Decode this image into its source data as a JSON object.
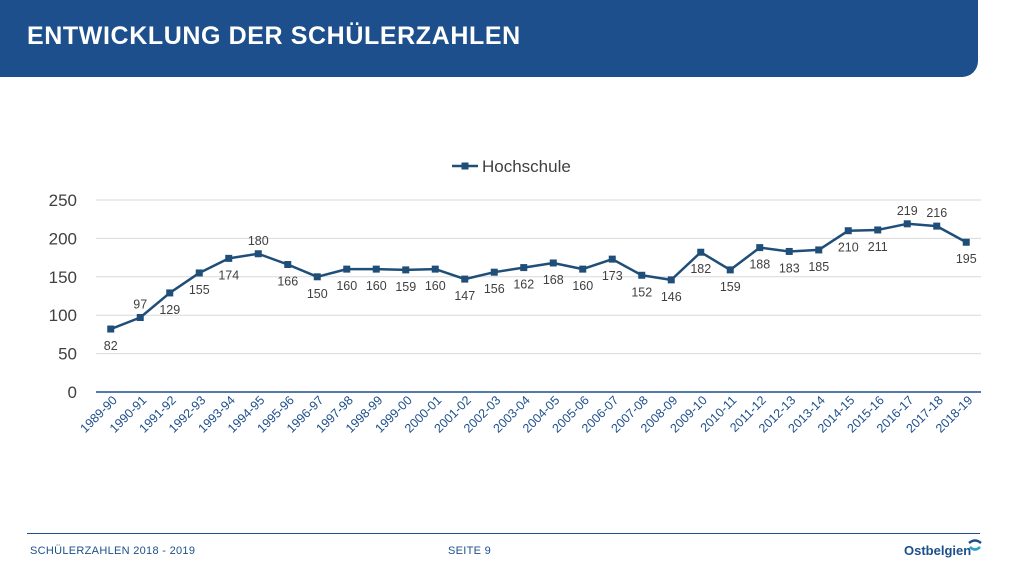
{
  "header": {
    "title": "ENTWICKLUNG DER SCHÜLERZAHLEN"
  },
  "footer": {
    "left": "SCHÜLERZAHLEN 2018 - 2019",
    "page": "SEITE 9",
    "logo": "Ostbelgien"
  },
  "colors": {
    "brand": "#1d4f8c",
    "series": "#1f4e79",
    "grid": "#d9d9d9",
    "text": "#404040"
  },
  "chart_data": {
    "type": "line",
    "title": "",
    "xlabel": "",
    "ylabel": "",
    "ylim": [
      0,
      250
    ],
    "yticks": [
      0,
      50,
      100,
      150,
      200,
      250
    ],
    "grid": true,
    "legend_position": "top",
    "categories": [
      "1989-90",
      "1990-91",
      "1991-92",
      "1992-93",
      "1993-94",
      "1994-95",
      "1995-96",
      "1996-97",
      "1997-98",
      "1998-99",
      "1999-00",
      "2000-01",
      "2001-02",
      "2002-03",
      "2003-04",
      "2004-05",
      "2005-06",
      "2006-07",
      "2007-08",
      "2008-09",
      "2009-10",
      "2010-11",
      "2011-12",
      "2012-13",
      "2013-14",
      "2014-15",
      "2015-16",
      "2016-17",
      "2017-18",
      "2018-19"
    ],
    "series": [
      {
        "name": "Hochschule",
        "values": [
          82,
          97,
          129,
          155,
          174,
          180,
          166,
          150,
          160,
          160,
          159,
          160,
          147,
          156,
          162,
          168,
          160,
          173,
          152,
          146,
          182,
          159,
          188,
          183,
          185,
          210,
          211,
          219,
          216,
          195
        ],
        "label_positions": [
          "below",
          "above",
          "below",
          "below",
          "below",
          "above",
          "below",
          "below",
          "below",
          "below",
          "below",
          "below",
          "below",
          "below",
          "below",
          "below",
          "below",
          "below",
          "below",
          "below",
          "below",
          "below",
          "below",
          "below",
          "below",
          "below",
          "below",
          "above",
          "above",
          "below"
        ]
      }
    ]
  }
}
